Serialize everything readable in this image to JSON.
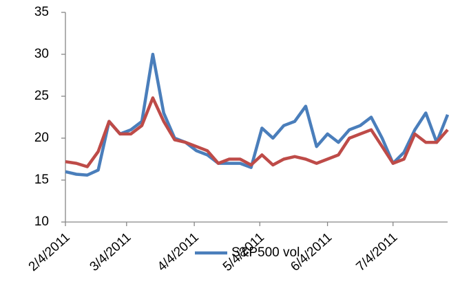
{
  "chart_data": {
    "type": "line",
    "x": [
      "2/4/2011",
      "2/9/2011",
      "2/14/2011",
      "2/19/2011",
      "2/24/2011",
      "3/1/2011",
      "3/6/2011",
      "3/11/2011",
      "3/16/2011",
      "3/21/2011",
      "3/26/2011",
      "3/31/2011",
      "4/5/2011",
      "4/10/2011",
      "4/15/2011",
      "4/20/2011",
      "4/25/2011",
      "4/30/2011",
      "5/5/2011",
      "5/10/2011",
      "5/15/2011",
      "5/20/2011",
      "5/25/2011",
      "5/30/2011",
      "6/4/2011",
      "6/9/2011",
      "6/14/2011",
      "6/19/2011",
      "6/24/2011",
      "6/29/2011",
      "7/4/2011",
      "7/9/2011",
      "7/14/2011",
      "7/19/2011",
      "7/24/2011",
      "7/29/2011"
    ],
    "series": [
      {
        "name": "S&P500 vol",
        "color": "#4a7ebb",
        "values": [
          16,
          15.7,
          15.6,
          16.2,
          22,
          20.5,
          21,
          22,
          30,
          23,
          20,
          19.5,
          18.5,
          18,
          17,
          17,
          17,
          16.5,
          21.2,
          20,
          21.5,
          22,
          23.8,
          19,
          20.5,
          19.5,
          21,
          21.5,
          22.5,
          20,
          17,
          18.3,
          21,
          23,
          19.5,
          22.8
        ]
      },
      {
        "color": "#be4b48",
        "values": [
          17.2,
          17,
          16.6,
          18.4,
          22,
          20.5,
          20.5,
          21.5,
          24.8,
          22,
          19.8,
          19.5,
          19,
          18.5,
          17,
          17.5,
          17.5,
          16.8,
          18,
          16.8,
          17.5,
          17.8,
          17.5,
          17,
          17.5,
          18,
          20,
          20.5,
          21,
          19,
          17,
          17.5,
          20.5,
          19.5,
          19.5,
          21
        ]
      }
    ],
    "xlim": [
      "2/4/2011",
      "7/29/2011"
    ],
    "xticks": [
      "2/4/2011",
      "3/4/2011",
      "4/4/2011",
      "5/4/2011",
      "6/4/2011",
      "7/4/2011"
    ],
    "ylim": [
      10,
      35
    ],
    "yticks": [
      10,
      15,
      20,
      25,
      30,
      35
    ]
  }
}
